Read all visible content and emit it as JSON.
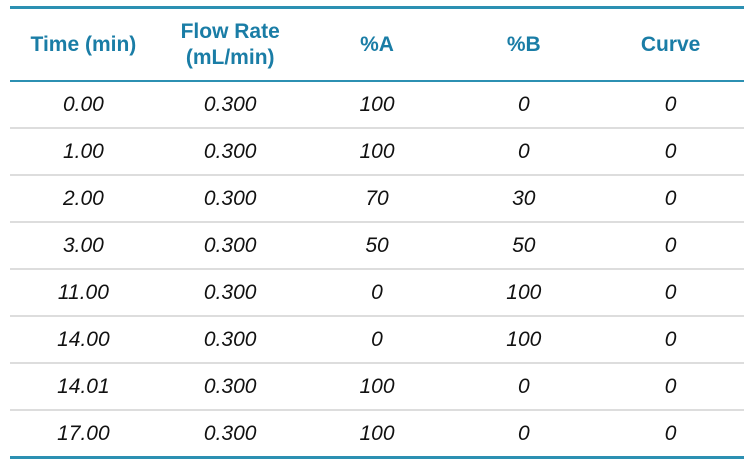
{
  "colors": {
    "header_text": "#1A7DA6",
    "accent_line": "#2C90B2",
    "row_separator": "#DDDDDD",
    "data_text": "#111111"
  },
  "table": {
    "display_headers": [
      "Time (min)",
      "Flow Rate\n(mL/min)",
      "%A",
      "%B",
      "Curve"
    ]
  },
  "chart_data": {
    "type": "table",
    "columns": [
      "Time (min)",
      "Flow Rate (mL/min)",
      "%A",
      "%B",
      "Curve"
    ],
    "rows": [
      [
        "0.00",
        "0.300",
        "100",
        "0",
        "0"
      ],
      [
        "1.00",
        "0.300",
        "100",
        "0",
        "0"
      ],
      [
        "2.00",
        "0.300",
        "70",
        "30",
        "0"
      ],
      [
        "3.00",
        "0.300",
        "50",
        "50",
        "0"
      ],
      [
        "11.00",
        "0.300",
        "0",
        "100",
        "0"
      ],
      [
        "14.00",
        "0.300",
        "0",
        "100",
        "0"
      ],
      [
        "14.01",
        "0.300",
        "100",
        "0",
        "0"
      ],
      [
        "17.00",
        "0.300",
        "100",
        "0",
        "0"
      ]
    ]
  }
}
